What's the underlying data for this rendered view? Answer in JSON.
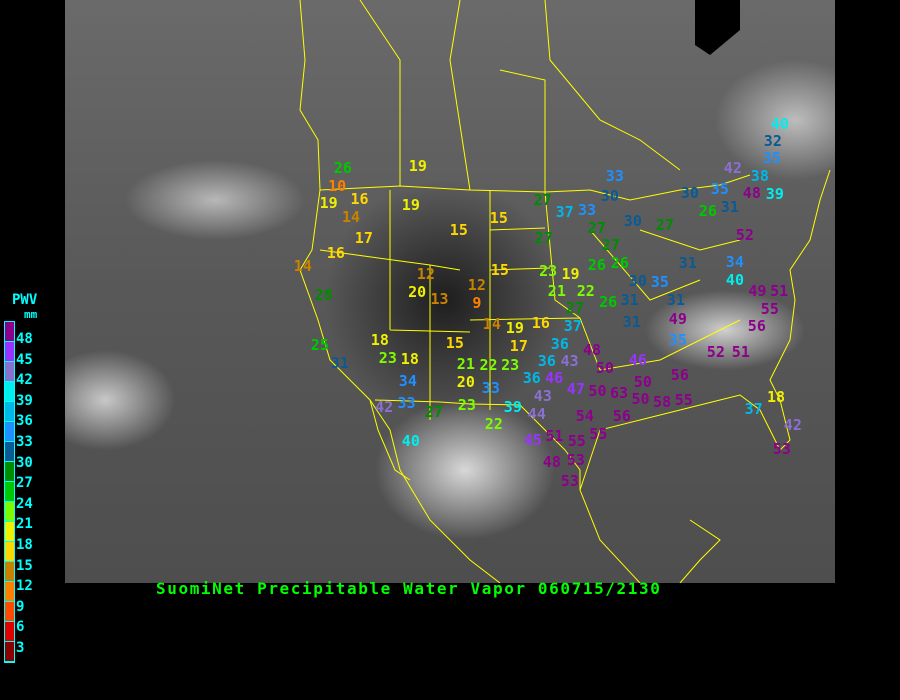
{
  "title": "SuomiNet Precipitable Water Vapor 060715/2130",
  "legend": {
    "title": "PWV",
    "unit": "mm",
    "ticks": [
      "48",
      "45",
      "42",
      "39",
      "36",
      "33",
      "30",
      "27",
      "24",
      "21",
      "18",
      "15",
      "12",
      "9",
      "6",
      "3"
    ],
    "colors": [
      "#8c008c",
      "#9933ff",
      "#8a70d0",
      "#00eeee",
      "#00b8e8",
      "#1e90ff",
      "#0a5a94",
      "#008c00",
      "#00c800",
      "#7cfc00",
      "#f0f000",
      "#ffd700",
      "#c88200",
      "#ff8000",
      "#ff4a00",
      "#e00000",
      "#8b0000"
    ]
  },
  "border_color": "#ffff00",
  "stations": [
    "26",
    "10",
    "19",
    "16",
    "14",
    "17",
    "16",
    "14",
    "28",
    "19",
    "19",
    "15",
    "15",
    "27",
    "37",
    "33",
    "27",
    "12",
    "20",
    "13",
    "12",
    "9",
    "15",
    "23",
    "19",
    "21",
    "22",
    "26",
    "27",
    "14",
    "19",
    "16",
    "37",
    "25",
    "31",
    "18",
    "23",
    "18",
    "15",
    "17",
    "36",
    "21",
    "20",
    "22",
    "23",
    "36",
    "43",
    "48",
    "34",
    "33",
    "36",
    "46",
    "47",
    "50",
    "42",
    "33",
    "27",
    "23",
    "39",
    "44",
    "43",
    "22",
    "40",
    "45",
    "51",
    "55",
    "48",
    "53",
    "53",
    "49",
    "49",
    "51",
    "55",
    "56",
    "35",
    "52",
    "51",
    "46",
    "50",
    "56",
    "50",
    "63",
    "50",
    "58",
    "55",
    "54",
    "55",
    "56",
    "18",
    "37",
    "42",
    "53",
    "40",
    "32",
    "35",
    "42",
    "38",
    "48",
    "39",
    "33",
    "30",
    "30",
    "35",
    "31",
    "26",
    "30",
    "27",
    "52",
    "27",
    "27",
    "26",
    "26",
    "31",
    "30",
    "35",
    "31",
    "34",
    "40",
    "31",
    "31"
  ]
}
